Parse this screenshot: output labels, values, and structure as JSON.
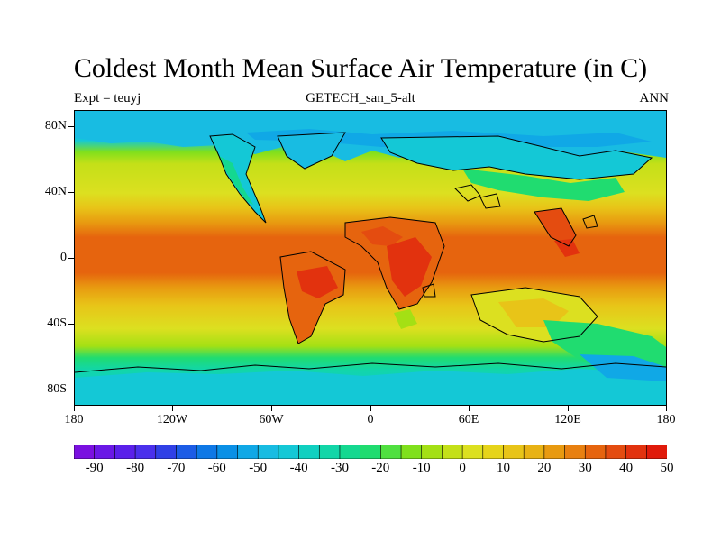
{
  "title": "Coldest Month Mean Surface Air Temperature (in C)",
  "subtitle_left": "Expt = teuyj",
  "subtitle_center": "GETECH_san_5-alt",
  "subtitle_right": "ANN",
  "lat_labels": [
    "80N",
    "40N",
    "0",
    "40S",
    "80S"
  ],
  "lat_values": [
    80,
    40,
    0,
    -40,
    -80
  ],
  "lon_labels": [
    "180",
    "120W",
    "60W",
    "0",
    "60E",
    "120E",
    "180"
  ],
  "lon_values": [
    -180,
    -120,
    -60,
    0,
    60,
    120,
    180
  ],
  "colorbar": {
    "labels": [
      "-90",
      "-80",
      "-70",
      "-60",
      "-50",
      "-40",
      "-30",
      "-20",
      "-10",
      "0",
      "10",
      "20",
      "30",
      "40",
      "50"
    ],
    "colors": [
      "#7a10e0",
      "#6a18e6",
      "#5a20ea",
      "#4a30ec",
      "#3040e6",
      "#1c5ce6",
      "#0e78e6",
      "#0a90e6",
      "#10a8e6",
      "#18bce2",
      "#14c8d6",
      "#10d0c0",
      "#12d6a8",
      "#14d890",
      "#20dc70",
      "#50e040",
      "#80e01c",
      "#a4e014",
      "#c4e018",
      "#dce020",
      "#e6d41a",
      "#e8c418",
      "#e8b214",
      "#e89a10",
      "#e88010",
      "#e6640e",
      "#e44c10",
      "#e2320e",
      "#e01a0a"
    ]
  }
}
